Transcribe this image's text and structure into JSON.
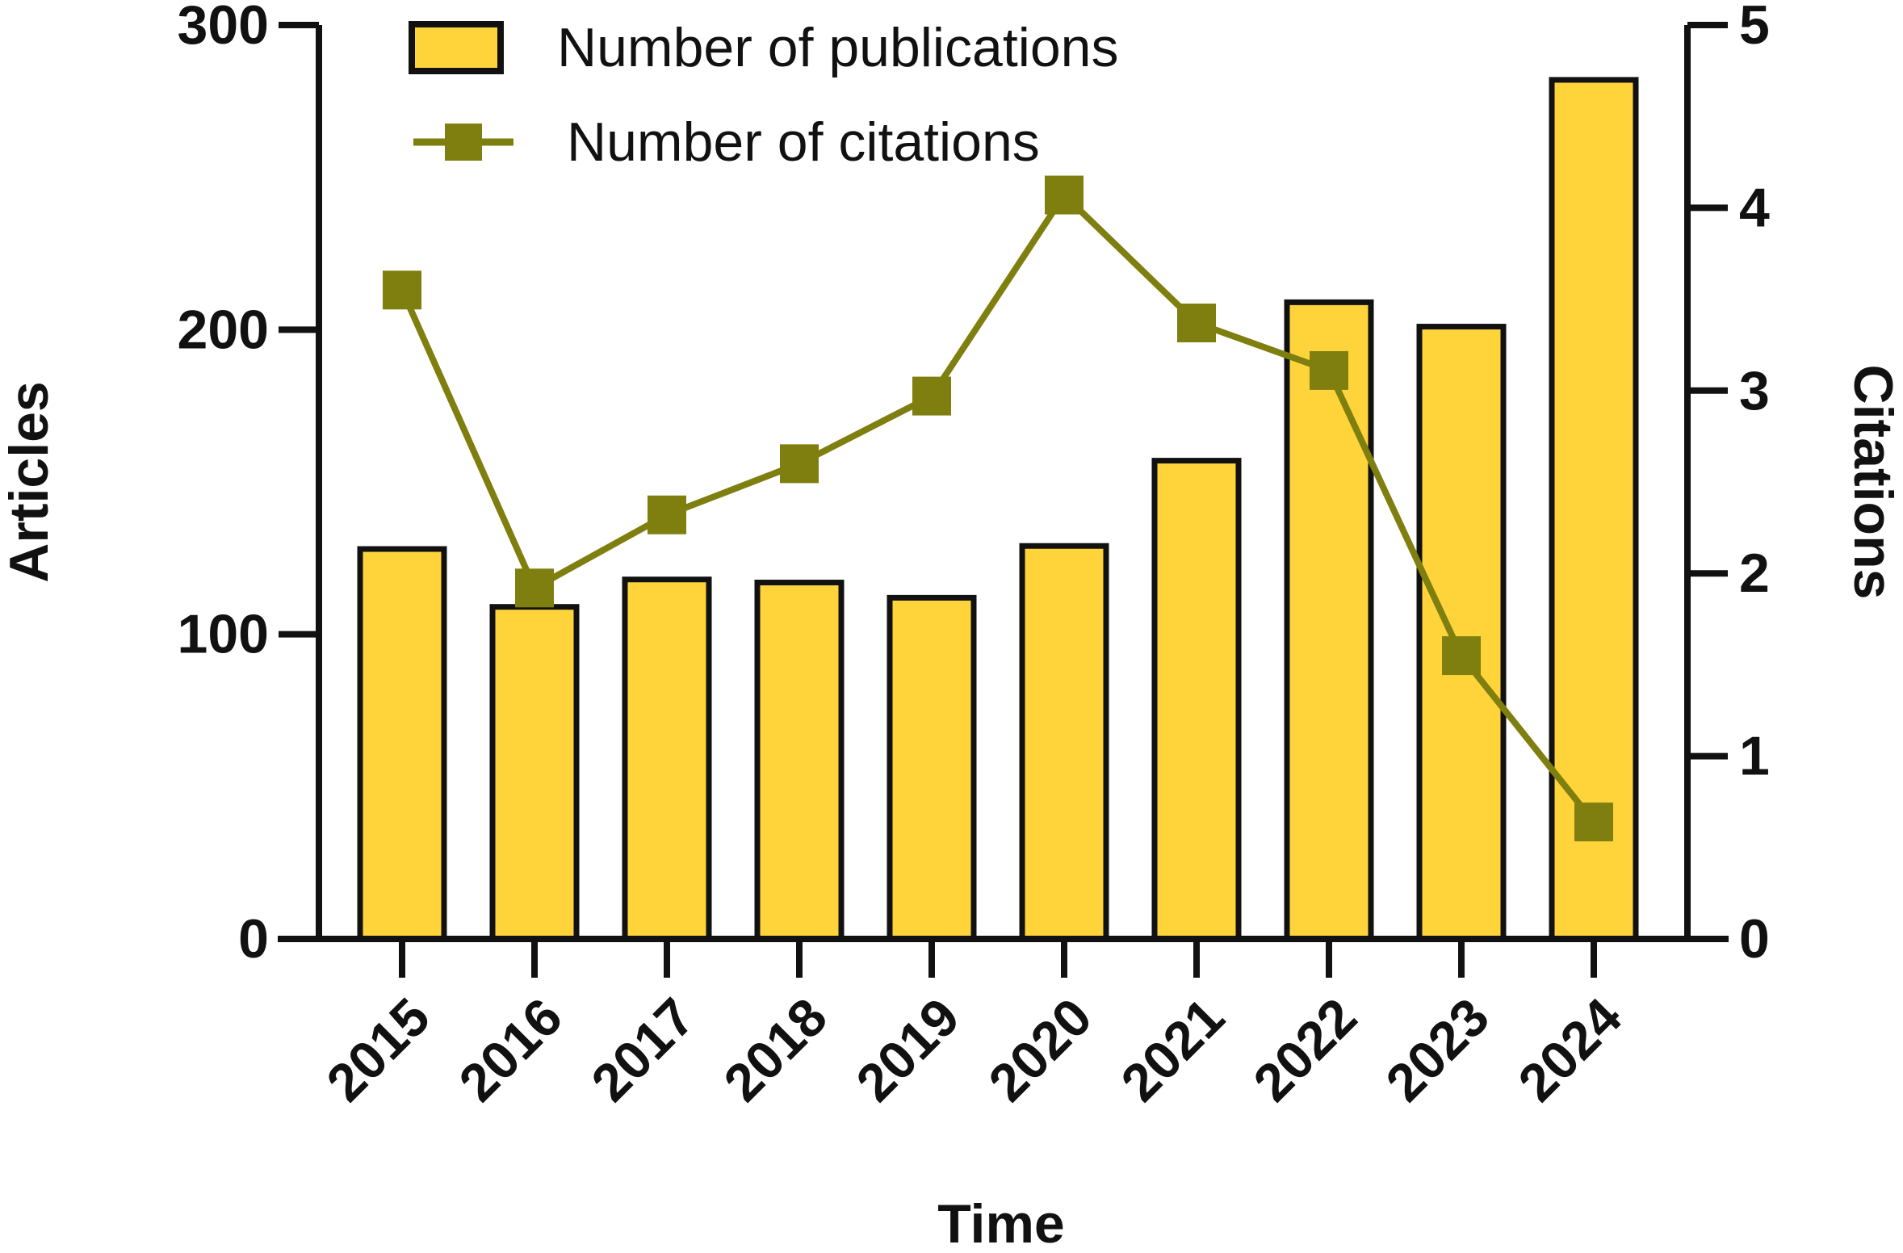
{
  "chart_data": {
    "type": "bar",
    "x": [
      "2015",
      "2016",
      "2017",
      "2018",
      "2019",
      "2020",
      "2021",
      "2022",
      "2023",
      "2024"
    ],
    "series": [
      {
        "name": "Number of publications",
        "type": "bar",
        "axis": "left",
        "color": "#FFD43B",
        "edge_color": "#111111",
        "values": [
          128,
          109,
          118,
          117,
          112,
          129,
          157,
          209,
          201,
          282
        ]
      },
      {
        "name": "Number of citations",
        "type": "line",
        "axis": "right",
        "color": "#7F7F10",
        "marker": "square",
        "values": [
          3.55,
          1.92,
          2.32,
          2.6,
          2.97,
          4.07,
          3.37,
          3.11,
          1.55,
          0.64
        ]
      }
    ],
    "xlabel": "Time",
    "ylabel": "Articles",
    "y2label": "Citations",
    "ylim": [
      0,
      300
    ],
    "y2lim": [
      0,
      5
    ],
    "yticks": [
      "0",
      "100",
      "200",
      "300"
    ],
    "y2ticks": [
      "0",
      "1",
      "2",
      "3",
      "4",
      "5"
    ],
    "legend": "top-center",
    "grid": false
  }
}
